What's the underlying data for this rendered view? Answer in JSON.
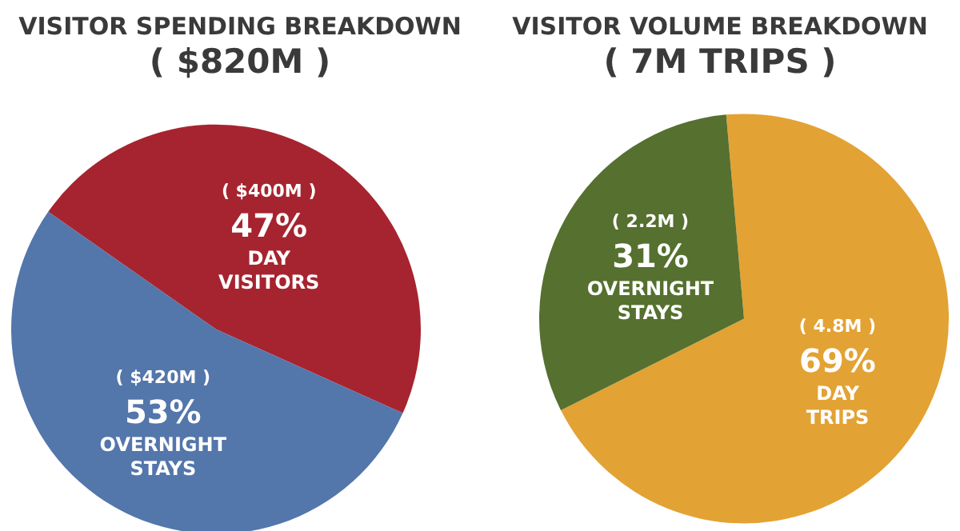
{
  "chart_data": [
    {
      "type": "pie",
      "title": "VISITOR SPENDING BREAKDOWN",
      "subtitle": "( $820M )",
      "categories": [
        "DAY VISITORS",
        "OVERNIGHT STAYS"
      ],
      "values": [
        47,
        53
      ],
      "colors": [
        "#a6242f",
        "#5376ab"
      ],
      "value_labels": [
        "47%",
        "53%"
      ],
      "annotations": [
        "( $400M )",
        "( $420M )"
      ],
      "legend": false
    },
    {
      "type": "pie",
      "title": "VISITOR VOLUME BREAKDOWN",
      "subtitle": "( 7M TRIPS )",
      "categories": [
        "DAY TRIPS",
        "OVERNIGHT STAYS"
      ],
      "values": [
        69,
        31
      ],
      "colors": [
        "#e3a234",
        "#55702f"
      ],
      "value_labels": [
        "69%",
        "31%"
      ],
      "annotations": [
        "( 4.8M )",
        "( 2.2M )"
      ],
      "legend": false
    }
  ]
}
